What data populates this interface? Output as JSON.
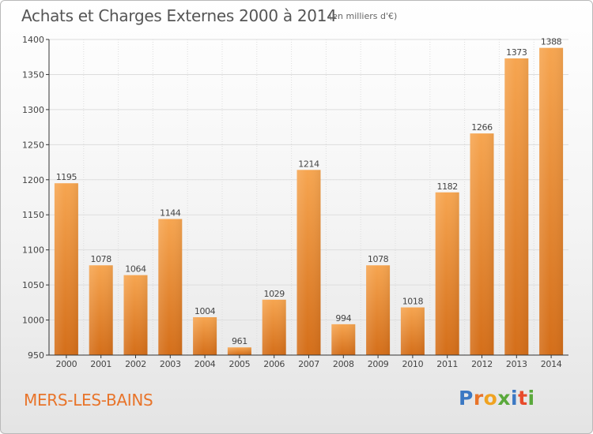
{
  "title": "Achats et Charges Externes 2000 à 2014",
  "subtitle": "(en milliers d'€)",
  "commune": "MERS-LES-BAINS",
  "logo": {
    "letters": [
      "P",
      "r",
      "o",
      "x",
      "i",
      "t",
      "i"
    ],
    "colors": [
      "#3b78c3",
      "#e8742a",
      "#f0a321",
      "#5aa93b",
      "#3b78c3",
      "#e84b2b",
      "#5aa93b"
    ]
  },
  "colors": {
    "bar_top": "#f6a550",
    "bar_bottom": "#d46e19",
    "grid": "#dddddd",
    "axis": "#333333"
  },
  "chart_data": {
    "type": "bar",
    "title": "Achats et Charges Externes 2000 à 2014",
    "subtitle": "(en milliers d'€)",
    "categories": [
      "2000",
      "2001",
      "2002",
      "2003",
      "2004",
      "2005",
      "2006",
      "2007",
      "2008",
      "2009",
      "2010",
      "2011",
      "2012",
      "2013",
      "2014"
    ],
    "values": [
      1195,
      1078,
      1064,
      1144,
      1004,
      961,
      1029,
      1214,
      994,
      1078,
      1018,
      1182,
      1266,
      1373,
      1388
    ],
    "ylim": [
      950,
      1400
    ],
    "yticks": [
      "950",
      "1000",
      "1050",
      "1100",
      "1150",
      "1200",
      "1250",
      "1300",
      "1350",
      "1400"
    ],
    "grid": true,
    "legend": "none"
  }
}
